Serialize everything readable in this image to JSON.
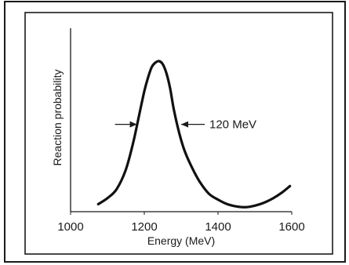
{
  "chart_data": {
    "type": "line",
    "title": "",
    "xlabel": "Energy (MeV)",
    "ylabel": "Reaction probability",
    "xlim": [
      1000,
      1600
    ],
    "ylim": [
      0,
      1
    ],
    "x_ticks": [
      1000,
      1200,
      1400,
      1600
    ],
    "x_tick_labels": [
      "1000",
      "1200",
      "1400",
      "1600"
    ],
    "y_ticks_labeled": false,
    "grid": false,
    "legend": "none",
    "series": [
      {
        "x": [
          1075,
          1100,
          1125,
          1150,
          1170,
          1185,
          1200,
          1210,
          1220,
          1230,
          1240,
          1250,
          1260,
          1270,
          1280,
          1295,
          1310,
          1330,
          1350,
          1375,
          1400,
          1425,
          1450,
          1475,
          1500,
          1525,
          1550,
          1575,
          1595
        ],
        "y": [
          0.05,
          0.09,
          0.15,
          0.28,
          0.46,
          0.63,
          0.8,
          0.89,
          0.96,
          0.99,
          1.0,
          0.98,
          0.92,
          0.82,
          0.68,
          0.52,
          0.4,
          0.29,
          0.2,
          0.12,
          0.08,
          0.05,
          0.035,
          0.03,
          0.04,
          0.06,
          0.09,
          0.13,
          0.17
        ]
      }
    ],
    "annotations": [
      {
        "text": "120 MeV",
        "kind": "width-marker",
        "x_from": 1180,
        "x_to": 1300,
        "y": 0.58
      }
    ]
  }
}
